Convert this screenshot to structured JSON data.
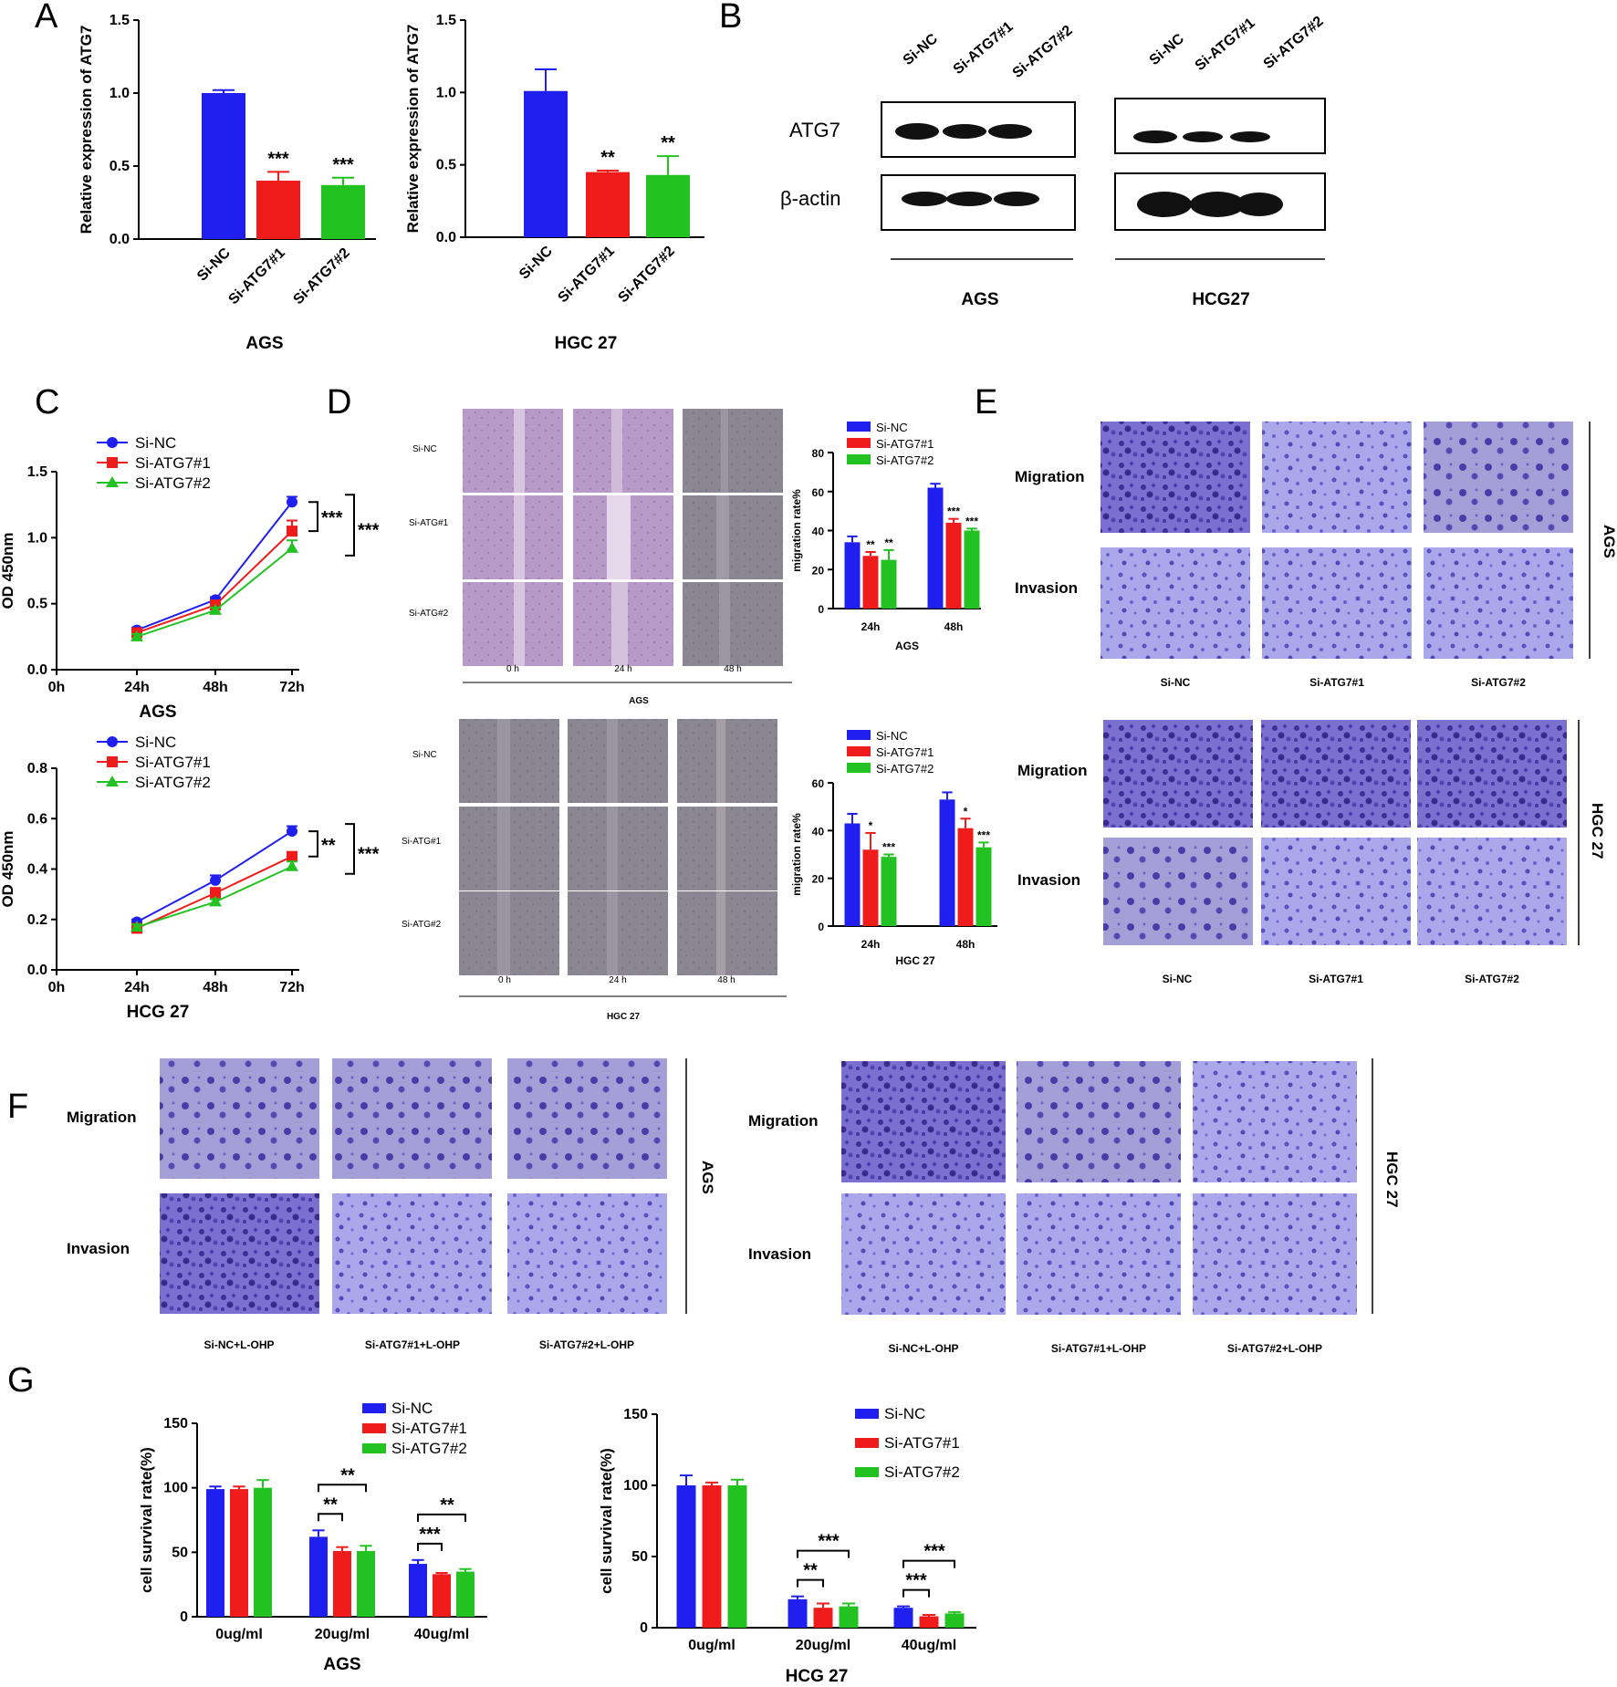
{
  "colors": {
    "si_nc": "#1f1ff0",
    "si_atg7_1": "#f01c1c",
    "si_atg7_2": "#22c222"
  },
  "panels": [
    "A",
    "B",
    "C",
    "D",
    "E",
    "F",
    "G"
  ],
  "chart_data": [
    {
      "id": "A_AGS",
      "type": "bar",
      "categories": [
        "Si-NC",
        "Si-ATG7#1",
        "Si-ATG7#2"
      ],
      "values": [
        1.0,
        0.4,
        0.37
      ],
      "errors": [
        0.02,
        0.06,
        0.05
      ],
      "significance": [
        "",
        "***",
        "***"
      ],
      "ylabel": "Relative expression of ATG7",
      "xlabel": "AGS",
      "ylim": [
        0,
        1.5
      ],
      "yticks": [
        "0.0",
        "0.5",
        "1.0",
        "1.5"
      ]
    },
    {
      "id": "A_HGC27",
      "type": "bar",
      "categories": [
        "Si-NC",
        "Si-ATG7#1",
        "Si-ATG7#2"
      ],
      "values": [
        1.01,
        0.45,
        0.43
      ],
      "errors": [
        0.15,
        0.01,
        0.13
      ],
      "significance": [
        "",
        "**",
        "**"
      ],
      "ylabel": "Relative expression of ATG7",
      "xlabel": "HGC 27",
      "ylim": [
        0,
        1.5
      ],
      "yticks": [
        "0.0",
        "0.5",
        "1.0",
        "1.5"
      ]
    },
    {
      "id": "C_AGS",
      "type": "line",
      "x": [
        "0h",
        "24h",
        "48h",
        "72h"
      ],
      "series": [
        {
          "name": "Si-NC",
          "values": [
            null,
            0.3,
            0.53,
            1.27
          ],
          "errors": [
            0,
            0.02,
            0.02,
            0.04
          ]
        },
        {
          "name": "Si-ATG7#1",
          "values": [
            null,
            0.28,
            0.49,
            1.05
          ],
          "errors": [
            0,
            0.02,
            0.02,
            0.08
          ]
        },
        {
          "name": "Si-ATG7#2",
          "values": [
            null,
            0.25,
            0.45,
            0.92
          ],
          "errors": [
            0,
            0.02,
            0.02,
            0.06
          ]
        }
      ],
      "ylabel": "OD 450nm",
      "xlabel": "AGS",
      "ylim": [
        0,
        1.5
      ],
      "yticks": [
        "0.0",
        "0.5",
        "1.0",
        "1.5"
      ],
      "significance": [
        "***",
        "***"
      ]
    },
    {
      "id": "C_HCG27",
      "type": "line",
      "x": [
        "0h",
        "24h",
        "48h",
        "72h"
      ],
      "series": [
        {
          "name": "Si-NC",
          "values": [
            null,
            0.19,
            0.355,
            0.55
          ],
          "errors": [
            0,
            0.01,
            0.02,
            0.02
          ]
        },
        {
          "name": "Si-ATG7#1",
          "values": [
            null,
            0.165,
            0.305,
            0.45
          ],
          "errors": [
            0,
            0.01,
            0.02,
            0.01
          ]
        },
        {
          "name": "Si-ATG7#2",
          "values": [
            null,
            0.17,
            0.27,
            0.41
          ],
          "errors": [
            0,
            0.01,
            0.01,
            0.02
          ]
        }
      ],
      "ylabel": "OD 450nm",
      "xlabel": "HCG 27",
      "ylim": [
        0,
        0.8
      ],
      "yticks": [
        "0.0",
        "0.2",
        "0.4",
        "0.6",
        "0.8"
      ],
      "significance": [
        "**",
        "***"
      ]
    },
    {
      "id": "D_AGS",
      "type": "bar",
      "categories": [
        "24h",
        "48h"
      ],
      "series": [
        {
          "name": "Si-NC",
          "values": [
            34,
            62
          ],
          "errors": [
            3,
            2
          ]
        },
        {
          "name": "Si-ATG7#1",
          "values": [
            27,
            44
          ],
          "errors": [
            2,
            2
          ]
        },
        {
          "name": "Si-ATG7#2",
          "values": [
            25,
            40
          ],
          "errors": [
            5,
            1
          ]
        }
      ],
      "significance": [
        [
          "",
          "**",
          "**"
        ],
        [
          "",
          "***",
          "***"
        ]
      ],
      "ylabel": "migration rate%",
      "xlabel": "AGS",
      "ylim": [
        0,
        80
      ],
      "yticks": [
        "0",
        "20",
        "40",
        "60",
        "80"
      ]
    },
    {
      "id": "D_HGC27",
      "type": "bar",
      "categories": [
        "24h",
        "48h"
      ],
      "series": [
        {
          "name": "Si-NC",
          "values": [
            43,
            53
          ],
          "errors": [
            4,
            3
          ]
        },
        {
          "name": "Si-ATG7#1",
          "values": [
            32,
            41
          ],
          "errors": [
            7,
            4
          ]
        },
        {
          "name": "Si-ATG7#2",
          "values": [
            29,
            33
          ],
          "errors": [
            1,
            2
          ]
        }
      ],
      "significance": [
        [
          "",
          "*",
          "***"
        ],
        [
          "",
          "*",
          "***"
        ]
      ],
      "ylabel": "migration rate%",
      "xlabel": "HGC 27",
      "ylim": [
        0,
        60
      ],
      "yticks": [
        "0",
        "20",
        "40",
        "60"
      ]
    },
    {
      "id": "G_AGS",
      "type": "bar",
      "categories": [
        "0ug/ml",
        "20ug/ml",
        "40ug/ml"
      ],
      "series": [
        {
          "name": "Si-NC",
          "values": [
            99,
            62,
            41
          ],
          "errors": [
            2,
            5,
            3
          ]
        },
        {
          "name": "Si-ATG7#1",
          "values": [
            99,
            51,
            33
          ],
          "errors": [
            2,
            3,
            1
          ]
        },
        {
          "name": "Si-ATG7#2",
          "values": [
            100,
            51,
            35
          ],
          "errors": [
            6,
            4,
            2
          ]
        }
      ],
      "significance": [
        [
          "",
          ""
        ],
        [
          "**",
          "**"
        ],
        [
          "***",
          "**"
        ]
      ],
      "ylabel": "cell survival rate(%)",
      "xlabel": "AGS",
      "ylim": [
        0,
        150
      ],
      "yticks": [
        "0",
        "50",
        "100",
        "150"
      ]
    },
    {
      "id": "G_HCG27",
      "type": "bar",
      "categories": [
        "0ug/ml",
        "20ug/ml",
        "40ug/ml"
      ],
      "series": [
        {
          "name": "Si-NC",
          "values": [
            100,
            20,
            14
          ],
          "errors": [
            7,
            2,
            1
          ]
        },
        {
          "name": "Si-ATG7#1",
          "values": [
            100,
            14,
            8
          ],
          "errors": [
            2,
            3,
            1
          ]
        },
        {
          "name": "Si-ATG7#2",
          "values": [
            100,
            15,
            10
          ],
          "errors": [
            4,
            2,
            1
          ]
        }
      ],
      "significance": [
        [
          "",
          ""
        ],
        [
          "**",
          "***"
        ],
        [
          "***",
          "***"
        ]
      ],
      "ylabel": "cell survival rate(%)",
      "xlabel": "HCG 27",
      "ylim": [
        0,
        150
      ],
      "yticks": [
        "0",
        "50",
        "100",
        "150"
      ]
    }
  ],
  "blot": {
    "lanes_ags": [
      "Si-NC",
      "Si-ATG7#1",
      "Si-ATG7#2"
    ],
    "lanes_hcg": [
      "Si-NC",
      "Si-ATG7#1",
      "Si-ATG7#2"
    ],
    "rows": [
      "ATG7",
      "β-actin"
    ],
    "groups": [
      "AGS",
      "HCG27"
    ]
  },
  "wound": {
    "rows_ags": [
      "Si-NC",
      "Si-ATG#1",
      "Si-ATG#2"
    ],
    "rows_hgc": [
      "Si-NC",
      "Si-ATG#1",
      "Si-ATG#2"
    ],
    "times": [
      "0 h",
      "24 h",
      "48 h"
    ],
    "group_ags": "AGS",
    "group_hgc": "HGC 27"
  },
  "transwell_e": {
    "rows": [
      "Migration",
      "Invasion"
    ],
    "cols": [
      "Si-NC",
      "Si-ATG7#1",
      "Si-ATG7#2"
    ],
    "groups": [
      "AGS",
      "HGC 27"
    ]
  },
  "transwell_f": {
    "rows": [
      "Migration",
      "Invasion"
    ],
    "cols": [
      "Si-NC+L-OHP",
      "Si-ATG7#1+L-OHP",
      "Si-ATG7#2+L-OHP"
    ],
    "groups": [
      "AGS",
      "HGC 27"
    ]
  }
}
